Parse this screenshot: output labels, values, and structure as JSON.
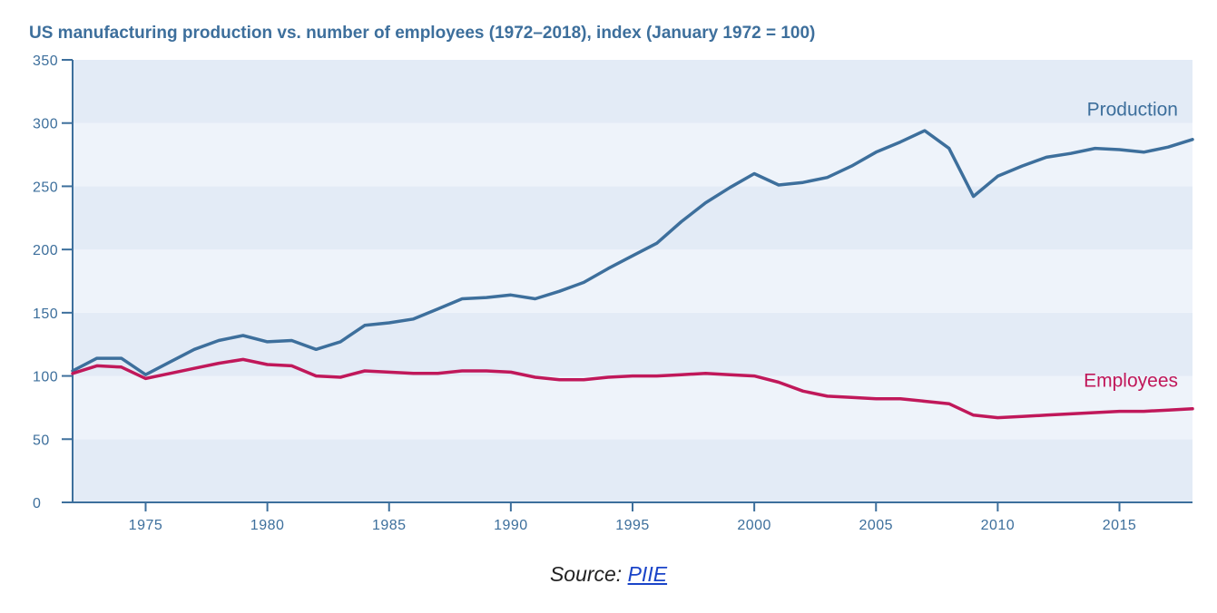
{
  "chart_data": {
    "type": "line",
    "title": "US manufacturing production vs. number of employees (1972–2018), index (January 1972 = 100)",
    "xlabel": "",
    "ylabel": "",
    "xlim": [
      1972,
      2018
    ],
    "ylim": [
      0,
      350
    ],
    "x_ticks": [
      1975,
      1980,
      1985,
      1990,
      1995,
      2000,
      2005,
      2010,
      2015
    ],
    "y_ticks": [
      0,
      50,
      100,
      150,
      200,
      250,
      300,
      350
    ],
    "grid": "alternating horizontal bands",
    "x": [
      1972,
      1973,
      1974,
      1975,
      1976,
      1977,
      1978,
      1979,
      1980,
      1981,
      1982,
      1983,
      1984,
      1985,
      1986,
      1987,
      1988,
      1989,
      1990,
      1991,
      1992,
      1993,
      1994,
      1995,
      1996,
      1997,
      1998,
      1999,
      2000,
      2001,
      2002,
      2003,
      2004,
      2005,
      2006,
      2007,
      2008,
      2009,
      2010,
      2011,
      2012,
      2013,
      2014,
      2015,
      2016,
      2017,
      2018
    ],
    "series": [
      {
        "name": "Production",
        "color": "#3d6f9c",
        "values": [
          104,
          114,
          114,
          101,
          111,
          121,
          128,
          132,
          127,
          128,
          121,
          127,
          140,
          142,
          145,
          153,
          161,
          162,
          164,
          161,
          167,
          174,
          185,
          195,
          205,
          222,
          237,
          249,
          260,
          251,
          253,
          257,
          266,
          277,
          285,
          294,
          280,
          242,
          258,
          266,
          273,
          276,
          280,
          279,
          277,
          281,
          287
        ]
      },
      {
        "name": "Employees",
        "color": "#c0185a",
        "values": [
          102,
          108,
          107,
          98,
          102,
          106,
          110,
          113,
          109,
          108,
          100,
          99,
          104,
          103,
          102,
          102,
          104,
          104,
          103,
          99,
          97,
          97,
          99,
          100,
          100,
          101,
          102,
          101,
          100,
          95,
          88,
          84,
          83,
          82,
          82,
          80,
          78,
          69,
          67,
          68,
          69,
          70,
          71,
          72,
          72,
          73,
          74
        ]
      }
    ]
  },
  "source": {
    "prefix": "Source: ",
    "link_text": "PIIE"
  },
  "colors": {
    "axis": "#3d6f9c",
    "title": "#3d6f9c",
    "band_dark": "#e3ebf6",
    "band_light": "#eef3fa"
  }
}
